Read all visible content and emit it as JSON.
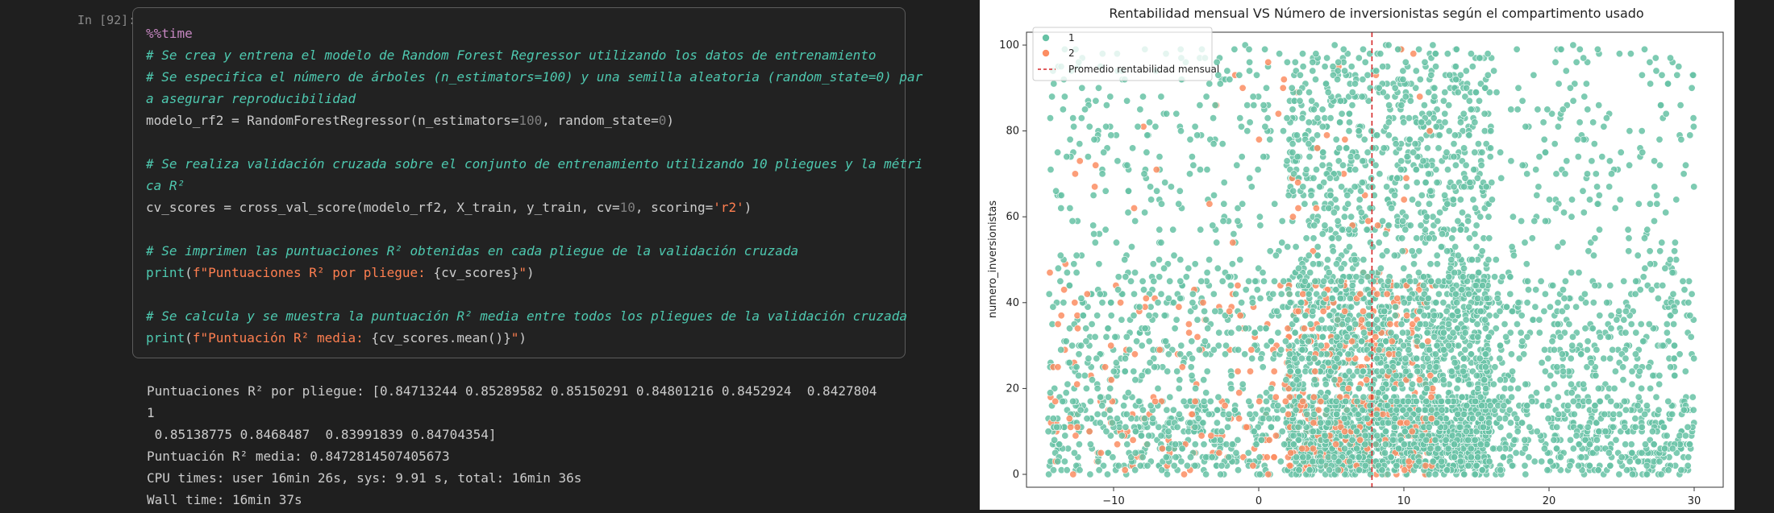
{
  "cell": {
    "prompt": "In [92]:",
    "code_lines": [
      [
        {
          "t": "magic",
          "v": "%%time"
        }
      ],
      [
        {
          "t": "cmt",
          "v": "# Se crea y entrena el modelo de Random Forest Regressor utilizando los datos de entrenamiento"
        }
      ],
      [
        {
          "t": "cmt",
          "v": "# Se especifica el número de árboles (n_estimators=100) y una semilla aleatoria (random_state=0) par"
        }
      ],
      [
        {
          "t": "cmt",
          "v": "a asegurar reproducibilidad"
        }
      ],
      [
        {
          "t": "var",
          "v": "modelo_rf2 = RandomForestRegressor(n_estimators="
        },
        {
          "t": "num",
          "v": "100"
        },
        {
          "t": "var",
          "v": ", random_state="
        },
        {
          "t": "num",
          "v": "0"
        },
        {
          "t": "var",
          "v": ")"
        }
      ],
      [],
      [
        {
          "t": "cmt",
          "v": "# Se realiza validación cruzada sobre el conjunto de entrenamiento utilizando 10 pliegues y la métri"
        }
      ],
      [
        {
          "t": "cmt",
          "v": "ca R²"
        }
      ],
      [
        {
          "t": "var",
          "v": "cv_scores = cross_val_score(modelo_rf2, X_train, y_train, cv="
        },
        {
          "t": "num",
          "v": "10"
        },
        {
          "t": "var",
          "v": ", scoring="
        },
        {
          "t": "str",
          "v": "'r2'"
        },
        {
          "t": "var",
          "v": ")"
        }
      ],
      [],
      [
        {
          "t": "cmt",
          "v": "# Se imprimen las puntuaciones R² obtenidas en cada pliegue de la validación cruzada"
        }
      ],
      [
        {
          "t": "kw",
          "v": "print"
        },
        {
          "t": "var",
          "v": "("
        },
        {
          "t": "str",
          "v": "f\"Puntuaciones R² por pliegue: "
        },
        {
          "t": "var",
          "v": "{cv_scores}"
        },
        {
          "t": "str",
          "v": "\""
        },
        {
          "t": "var",
          "v": ")"
        }
      ],
      [],
      [
        {
          "t": "cmt",
          "v": "# Se calcula y se muestra la puntuación R² media entre todos los pliegues de la validación cruzada"
        }
      ],
      [
        {
          "t": "kw",
          "v": "print"
        },
        {
          "t": "var",
          "v": "("
        },
        {
          "t": "str",
          "v": "f\"Puntuación R² media: "
        },
        {
          "t": "var",
          "v": "{cv_scores.mean()}"
        },
        {
          "t": "str",
          "v": "\""
        },
        {
          "t": "var",
          "v": ")"
        }
      ]
    ]
  },
  "output_lines": [
    "Puntuaciones R² por pliegue: [0.84713244 0.85289582 0.85150291 0.84801216 0.8452924  0.8427804",
    "1",
    " 0.85138775 0.8468487  0.83991839 0.84704354]",
    "Puntuación R² media: 0.8472814507405673",
    "CPU times: user 16min 26s, sys: 9.91 s, total: 16min 36s",
    "Wall time: 16min 37s"
  ],
  "chart_data": {
    "type": "scatter",
    "title": "Rentabilidad mensual VS Número de inversionistas según el compartimento usado",
    "xlabel": "",
    "ylabel": "numero_inversionistas",
    "xlim": [
      -16,
      32
    ],
    "ylim": [
      -3,
      103
    ],
    "xticks": [
      -10,
      0,
      10,
      20,
      30
    ],
    "yticks": [
      0,
      20,
      40,
      60,
      80,
      100
    ],
    "series": [
      {
        "name": "1",
        "color": "#66c2a5"
      },
      {
        "name": "2",
        "color": "#fc8d62"
      }
    ],
    "series_x_range": [
      -14.5,
      30
    ],
    "series_y_range": [
      0,
      100
    ],
    "vline": {
      "x": 7.8,
      "label": "Promedio rentabilidad mensual",
      "color": "#d62728",
      "style": "dashed"
    },
    "legend_position": "top-left"
  }
}
